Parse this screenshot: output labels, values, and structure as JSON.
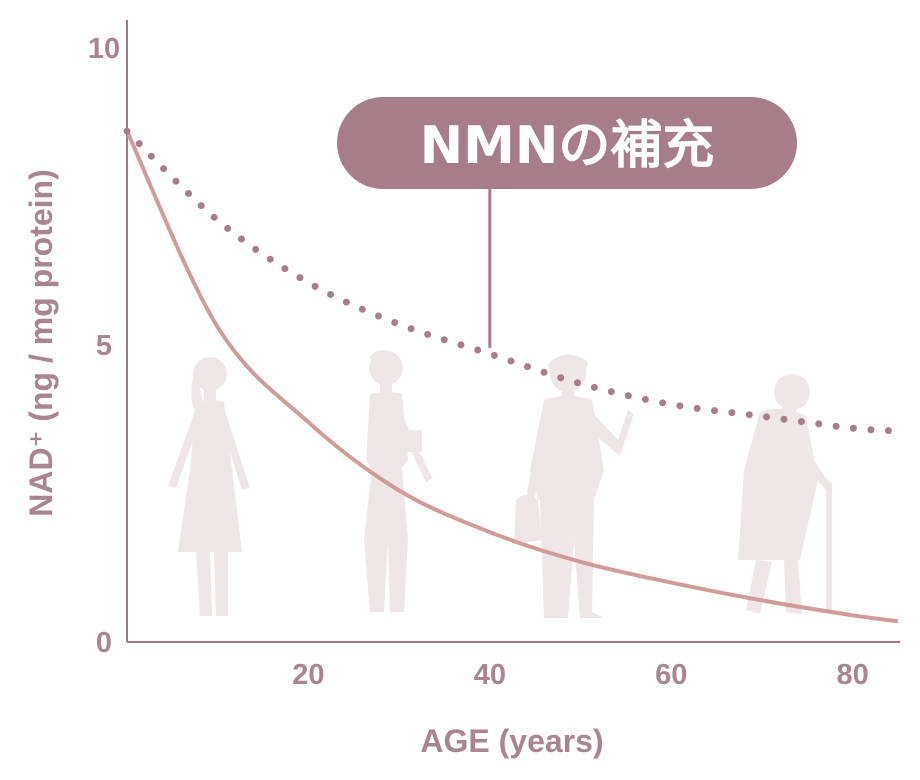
{
  "chart_data": {
    "type": "line",
    "xlabel": "AGE (years)",
    "ylabel": "NAD⁺ (ng / mg protein)",
    "xlim": [
      0,
      85
    ],
    "ylim": [
      0,
      10
    ],
    "x_ticks": [
      "20",
      "40",
      "60",
      "80"
    ],
    "x_tick_values": [
      20,
      40,
      60,
      80
    ],
    "y_ticks": [
      "0",
      "5",
      "10"
    ],
    "y_tick_values": [
      0,
      5,
      10
    ],
    "grid": false,
    "annotations": [
      {
        "text": "NMNの補充",
        "points_to": {
          "x": 40,
          "y": 4.85
        }
      }
    ],
    "series": [
      {
        "style": "solid",
        "color": "#cf9c9a",
        "points": [
          {
            "x": 0,
            "y": 8.6
          },
          {
            "x": 10,
            "y": 5.3
          },
          {
            "x": 20,
            "y": 3.7
          },
          {
            "x": 30,
            "y": 2.55
          },
          {
            "x": 40,
            "y": 1.85
          },
          {
            "x": 50,
            "y": 1.35
          },
          {
            "x": 60,
            "y": 1.0
          },
          {
            "x": 70,
            "y": 0.7
          },
          {
            "x": 80,
            "y": 0.45
          },
          {
            "x": 85,
            "y": 0.35
          }
        ]
      },
      {
        "style": "dotted",
        "color": "#a87d8a",
        "points": [
          {
            "x": 0,
            "y": 8.6
          },
          {
            "x": 10,
            "y": 7.1
          },
          {
            "x": 20,
            "y": 6.05
          },
          {
            "x": 30,
            "y": 5.35
          },
          {
            "x": 40,
            "y": 4.85
          },
          {
            "x": 50,
            "y": 4.35
          },
          {
            "x": 60,
            "y": 4.0
          },
          {
            "x": 70,
            "y": 3.8
          },
          {
            "x": 80,
            "y": 3.6
          },
          {
            "x": 85,
            "y": 3.55
          }
        ]
      }
    ]
  },
  "colors": {
    "axis": "#9c7b86",
    "text": "#a88590",
    "callout": "#a87d8a",
    "silhouette": "#efe6e8"
  },
  "decorations": [
    "young-woman-silhouette",
    "adult-woman-silhouette",
    "middle-aged-woman-silhouette",
    "elderly-woman-with-cane-silhouette"
  ]
}
